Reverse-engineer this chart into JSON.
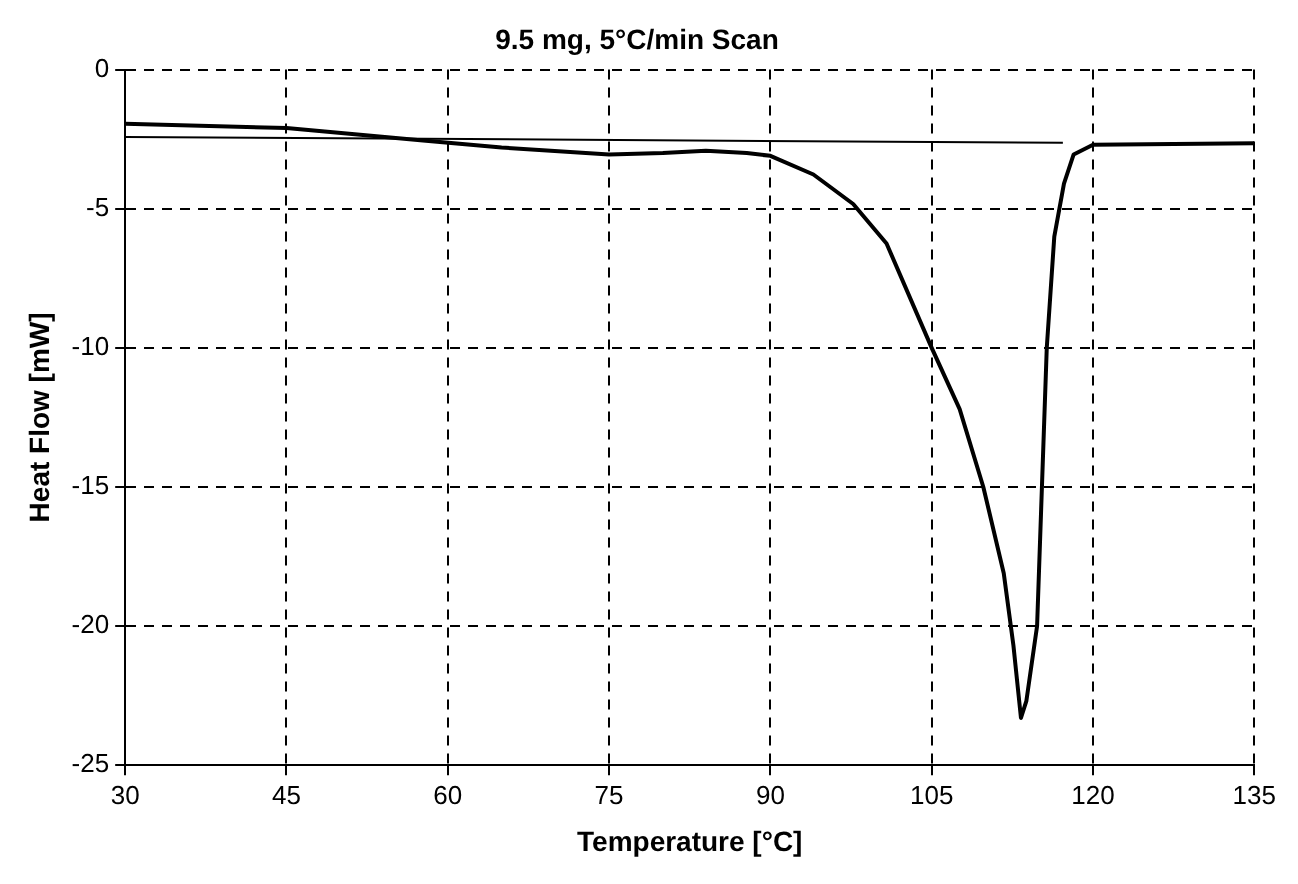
{
  "chart_data": {
    "type": "line",
    "title": "9.5 mg, 5°C/min Scan",
    "xlabel": "Temperature [°C]",
    "ylabel": "Heat Flow [mW]",
    "xlim": [
      30,
      135
    ],
    "xticks": [
      30,
      45,
      60,
      75,
      90,
      105,
      120,
      135
    ],
    "ylim": [
      -25,
      0
    ],
    "yticks": [
      -25,
      -20,
      -15,
      -10,
      -5,
      0
    ],
    "grid": true,
    "marker": "none",
    "line_style": "solid",
    "series": [
      {
        "color": "#000000",
        "x": [
          30,
          45,
          57.7,
          65,
          75,
          80,
          84,
          87.8,
          90,
          94,
          97.7,
          100.8,
          105,
          107.6,
          109.8,
          111.7,
          112.6,
          113.3,
          113.8,
          114.8,
          115.7,
          116.4,
          117.3,
          118.2,
          120,
          135
        ],
        "values": [
          -1.95,
          -2.1,
          -2.55,
          -2.8,
          -3.05,
          -3.0,
          -2.92,
          -3.0,
          -3.1,
          -3.77,
          -4.83,
          -6.25,
          -10.0,
          -12.2,
          -15.0,
          -18.1,
          -20.7,
          -23.3,
          -22.7,
          -20.0,
          -10.0,
          -6.0,
          -4.1,
          -3.05,
          -2.7,
          -2.65
        ]
      },
      {
        "color": "#000000",
        "x": [
          30,
          117.2
        ],
        "values": [
          -2.42,
          -2.63
        ]
      }
    ]
  }
}
